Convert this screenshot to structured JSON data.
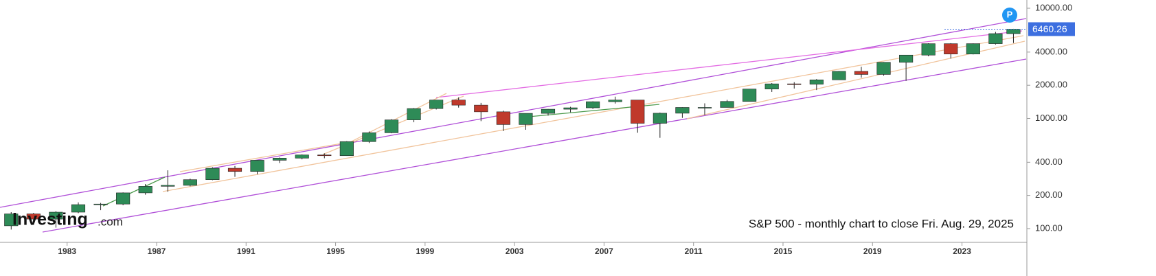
{
  "chart_data": {
    "type": "candlestick",
    "annotation": "S&P 500 - monthly chart to close Fri. Aug. 29, 2025",
    "logo_text": "Investing",
    "logo_suffix": ".com",
    "marker_label": "P",
    "last_value": 6460.26,
    "log_scale": true,
    "up_color": "#2e8b57",
    "down_color": "#c0392b",
    "x": [
      1980.5,
      1981.5,
      1982.5,
      1983.5,
      1984.5,
      1985.5,
      1986.5,
      1987.5,
      1988.5,
      1989.5,
      1990.5,
      1991.5,
      1992.5,
      1993.5,
      1994.5,
      1995.5,
      1996.5,
      1997.5,
      1998.5,
      1999.5,
      2000.5,
      2001.5,
      2002.5,
      2003.5,
      2004.5,
      2005.5,
      2006.5,
      2007.5,
      2008.5,
      2009.5,
      2010.5,
      2011.5,
      2012.5,
      2013.5,
      2014.5,
      2015.5,
      2016.5,
      2017.5,
      2018.5,
      2019.5,
      2020.5,
      2021.5,
      2022.5,
      2023.5,
      2024.5,
      2025.3
    ],
    "open": [
      106,
      136,
      122,
      141,
      165,
      167,
      211,
      242,
      247,
      278,
      353,
      330,
      417,
      436,
      466,
      459,
      616,
      741,
      970,
      1229,
      1469,
      1320,
      1148,
      880,
      1112,
      1212,
      1248,
      1418,
      1468,
      903,
      1115,
      1258,
      1258,
      1426,
      1848,
      2059,
      2044,
      2239,
      2674,
      2507,
      3231,
      3756,
      4766,
      3840,
      4770,
      5882
    ],
    "high": [
      141,
      139,
      144,
      173,
      171,
      213,
      254,
      338,
      284,
      360,
      370,
      418,
      442,
      471,
      482,
      622,
      762,
      984,
      1242,
      1474,
      1553,
      1383,
      1176,
      1112,
      1217,
      1275,
      1431,
      1576,
      1471,
      1130,
      1263,
      1371,
      1475,
      1849,
      2094,
      2135,
      2277,
      2695,
      2941,
      3248,
      3760,
      4808,
      4818,
      4794,
      6100,
      6508
    ],
    "low": [
      98,
      112,
      102,
      138,
      147,
      163,
      203,
      216,
      242,
      275,
      295,
      311,
      394,
      425,
      435,
      457,
      598,
      733,
      923,
      1205,
      1254,
      945,
      768,
      789,
      1060,
      1137,
      1219,
      1364,
      741,
      667,
      1011,
      1075,
      1259,
      1426,
      1738,
      1867,
      1810,
      2233,
      2347,
      2444,
      2192,
      3663,
      3492,
      3809,
      4683,
      4835
    ],
    "close": [
      136,
      122,
      141,
      165,
      167,
      211,
      242,
      247,
      278,
      353,
      330,
      417,
      436,
      466,
      459,
      616,
      741,
      970,
      1229,
      1469,
      1320,
      1148,
      880,
      1112,
      1212,
      1248,
      1418,
      1468,
      903,
      1115,
      1258,
      1258,
      1426,
      1848,
      2059,
      2044,
      2239,
      2674,
      2507,
      3231,
      3756,
      4766,
      3840,
      4770,
      5882,
      6460.26
    ],
    "xlim": [
      1980.0,
      2025.9
    ],
    "ylim": [
      75,
      11880
    ],
    "xticks": [
      1983,
      1987,
      1991,
      1995,
      1999,
      2003,
      2007,
      2011,
      2015,
      2019,
      2023
    ],
    "yticks": [
      {
        "value": 100,
        "label": "100.00"
      },
      {
        "value": 200,
        "label": "200.00"
      },
      {
        "value": 400,
        "label": "400.00"
      },
      {
        "value": 1000,
        "label": "1000.00"
      },
      {
        "value": 2000,
        "label": "2000.00"
      },
      {
        "value": 4000,
        "label": "4000.00"
      },
      {
        "value": 10000,
        "label": "10000.00"
      }
    ]
  }
}
